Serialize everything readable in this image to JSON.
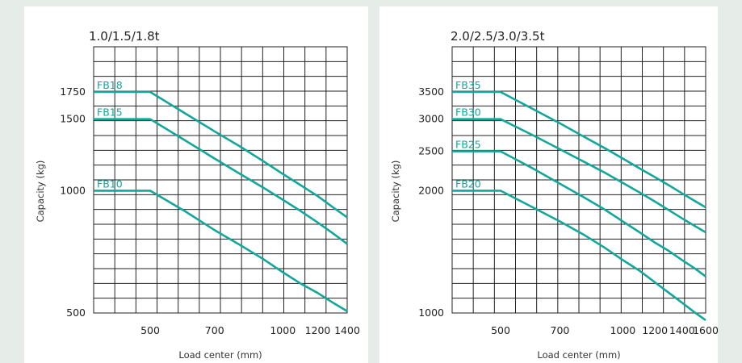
{
  "chart_data": [
    {
      "type": "line",
      "title": "1.0/1.5/1.8t",
      "xlabel": "Load center (mm)",
      "ylabel": "Capacity (kg)",
      "x_ticks": [
        500,
        700,
        1000,
        1200,
        1400
      ],
      "y_ticks": [
        500,
        1000,
        1500,
        1750
      ],
      "series": [
        {
          "name": "FB18",
          "points": [
            [
              0,
              1750
            ],
            [
              500,
              1750
            ],
            [
              600,
              1550
            ],
            [
              700,
              1400
            ],
            [
              800,
              1285
            ],
            [
              900,
              1185
            ],
            [
              1000,
              1100
            ],
            [
              1100,
              1030
            ],
            [
              1200,
              970
            ],
            [
              1300,
              910
            ],
            [
              1400,
              860
            ]
          ]
        },
        {
          "name": "FB15",
          "points": [
            [
              0,
              1500
            ],
            [
              500,
              1500
            ],
            [
              600,
              1330
            ],
            [
              700,
              1200
            ],
            [
              800,
              1100
            ],
            [
              900,
              1020
            ],
            [
              1000,
              950
            ],
            [
              1100,
              890
            ],
            [
              1200,
              835
            ],
            [
              1300,
              785
            ],
            [
              1400,
              740
            ]
          ]
        },
        {
          "name": "FB10",
          "points": [
            [
              0,
              1000
            ],
            [
              500,
              1000
            ],
            [
              600,
              890
            ],
            [
              700,
              800
            ],
            [
              800,
              735
            ],
            [
              900,
              680
            ],
            [
              1000,
              630
            ],
            [
              1100,
              590
            ],
            [
              1200,
              560
            ],
            [
              1300,
              530
            ],
            [
              1400,
              505
            ]
          ]
        }
      ]
    },
    {
      "type": "line",
      "title": "2.0/2.5/3.0/3.5t",
      "xlabel": "Load center (mm)",
      "ylabel": "Capacity (kg)",
      "x_ticks": [
        500,
        700,
        1000,
        1200,
        1400,
        1600
      ],
      "y_ticks": [
        1000,
        2000,
        2500,
        3000,
        3500
      ],
      "series": [
        {
          "name": "FB35",
          "points": [
            [
              0,
              3500
            ],
            [
              500,
              3500
            ],
            [
              600,
              3180
            ],
            [
              700,
              2930
            ],
            [
              800,
              2720
            ],
            [
              900,
              2550
            ],
            [
              1000,
              2400
            ],
            [
              1100,
              2270
            ],
            [
              1200,
              2160
            ],
            [
              1300,
              2060
            ],
            [
              1400,
              1970
            ],
            [
              1500,
              1890
            ],
            [
              1600,
              1820
            ]
          ]
        },
        {
          "name": "FB30",
          "points": [
            [
              0,
              3000
            ],
            [
              500,
              3000
            ],
            [
              600,
              2740
            ],
            [
              700,
              2530
            ],
            [
              800,
              2360
            ],
            [
              900,
              2220
            ],
            [
              1000,
              2090
            ],
            [
              1100,
              1980
            ],
            [
              1200,
              1880
            ],
            [
              1300,
              1790
            ],
            [
              1400,
              1710
            ],
            [
              1500,
              1640
            ],
            [
              1600,
              1580
            ]
          ]
        },
        {
          "name": "FB25",
          "points": [
            [
              0,
              2500
            ],
            [
              500,
              2500
            ],
            [
              600,
              2270
            ],
            [
              700,
              2080
            ],
            [
              800,
              1930
            ],
            [
              900,
              1800
            ],
            [
              1000,
              1680
            ],
            [
              1100,
              1580
            ],
            [
              1200,
              1490
            ],
            [
              1300,
              1420
            ],
            [
              1400,
              1350
            ],
            [
              1500,
              1290
            ],
            [
              1600,
              1230
            ]
          ]
        },
        {
          "name": "FB20",
          "points": [
            [
              0,
              2000
            ],
            [
              500,
              2000
            ],
            [
              600,
              1820
            ],
            [
              700,
              1680
            ],
            [
              800,
              1560
            ],
            [
              900,
              1450
            ],
            [
              1000,
              1350
            ],
            [
              1100,
              1270
            ],
            [
              1200,
              1190
            ],
            [
              1300,
              1120
            ],
            [
              1400,
              1060
            ],
            [
              1500,
              1005
            ],
            [
              1600,
              960
            ]
          ]
        }
      ]
    }
  ]
}
